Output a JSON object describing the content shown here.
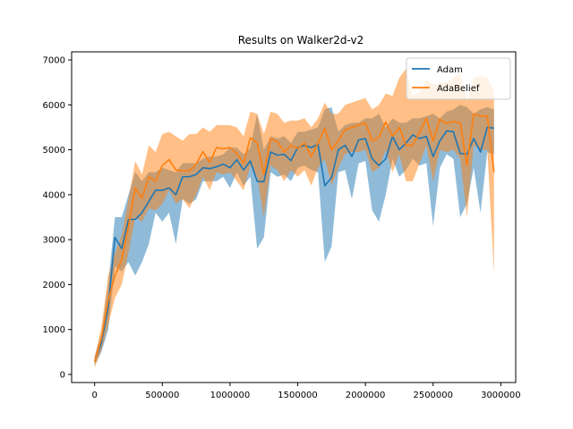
{
  "chart_data": {
    "type": "line",
    "title": "Results on Walker2d-v2",
    "xlabel": "",
    "ylabel": "",
    "xlim": [
      -170000,
      3110000
    ],
    "ylim": [
      -180,
      7180
    ],
    "xticks": [
      0,
      500000,
      1000000,
      1500000,
      2000000,
      2500000,
      3000000
    ],
    "xtick_labels": [
      "0",
      "500000",
      "1000000",
      "1500000",
      "2000000",
      "2500000",
      "3000000"
    ],
    "yticks": [
      0,
      1000,
      2000,
      3000,
      4000,
      5000,
      6000,
      7000
    ],
    "ytick_labels": [
      "0",
      "1000",
      "2000",
      "3000",
      "4000",
      "5000",
      "6000",
      "7000"
    ],
    "grid": false,
    "legend_position": "top-right",
    "x": [
      0,
      50000,
      100000,
      150000,
      200000,
      250000,
      300000,
      350000,
      400000,
      450000,
      500000,
      550000,
      600000,
      650000,
      700000,
      750000,
      800000,
      850000,
      900000,
      950000,
      1000000,
      1050000,
      1100000,
      1150000,
      1200000,
      1250000,
      1300000,
      1350000,
      1400000,
      1450000,
      1500000,
      1550000,
      1600000,
      1650000,
      1700000,
      1750000,
      1800000,
      1850000,
      1900000,
      1950000,
      2000000,
      2050000,
      2100000,
      2150000,
      2200000,
      2250000,
      2300000,
      2350000,
      2400000,
      2450000,
      2500000,
      2550000,
      2600000,
      2650000,
      2700000,
      2750000,
      2800000,
      2850000,
      2900000,
      2950000
    ],
    "series": [
      {
        "name": "Adam",
        "color": "#1f77b4",
        "values": [
          300,
          700,
          1500,
          3050,
          2800,
          3450,
          3450,
          3600,
          3850,
          4100,
          4100,
          4150,
          4000,
          4400,
          4400,
          4450,
          4600,
          4580,
          4620,
          4680,
          4600,
          4780,
          4550,
          4750,
          4300,
          4290,
          4950,
          4880,
          4900,
          4760,
          5050,
          5100,
          5050,
          5120,
          4200,
          4380,
          5000,
          5100,
          4850,
          5220,
          5250,
          4800,
          4650,
          4800,
          5300,
          5000,
          5150,
          5330,
          5250,
          5300,
          4850,
          5200,
          5420,
          5400,
          4920,
          4900,
          5250,
          4950,
          5500,
          5480
        ],
        "lower": [
          200,
          500,
          1000,
          2400,
          2300,
          2500,
          2200,
          2500,
          2900,
          3600,
          3400,
          3600,
          2900,
          3900,
          3800,
          3900,
          4300,
          4300,
          4300,
          4400,
          4150,
          4500,
          4200,
          4400,
          2800,
          3050,
          4500,
          4400,
          4450,
          4300,
          4600,
          4650,
          4550,
          4500,
          2500,
          2850,
          4500,
          4550,
          3900,
          4700,
          4750,
          3650,
          3400,
          4000,
          4800,
          4400,
          4550,
          4800,
          4650,
          4700,
          3300,
          4600,
          4900,
          4800,
          3500,
          3800,
          4600,
          3600,
          4950,
          4900
        ],
        "upper": [
          400,
          900,
          2000,
          3500,
          3500,
          4000,
          4500,
          4300,
          4500,
          4500,
          4600,
          4550,
          4500,
          4700,
          4700,
          4700,
          4800,
          4850,
          4850,
          4900,
          5050,
          5050,
          4900,
          5050,
          5800,
          5000,
          5300,
          5250,
          5300,
          5150,
          5400,
          5400,
          5450,
          5500,
          5900,
          5950,
          5400,
          5550,
          5600,
          5600,
          5700,
          5700,
          5800,
          5500,
          5700,
          5600,
          5600,
          5700,
          5700,
          5750,
          5800,
          5700,
          5850,
          5900,
          6000,
          5950,
          5800,
          5900,
          5950,
          5900
        ]
      },
      {
        "name": "AdaBelief",
        "color": "#ff7f0e",
        "values": [
          280,
          800,
          1650,
          2200,
          2550,
          3300,
          4150,
          3920,
          4400,
          4300,
          4650,
          4780,
          4550,
          4530,
          4530,
          4680,
          4960,
          4720,
          5050,
          5020,
          5050,
          4920,
          4700,
          5270,
          5150,
          4450,
          5250,
          5180,
          4950,
          5100,
          5030,
          5150,
          4850,
          5150,
          5480,
          5000,
          5200,
          5450,
          5500,
          5550,
          5600,
          5200,
          5280,
          5620,
          5300,
          5500,
          5100,
          5100,
          5400,
          5700,
          5200,
          5680,
          5580,
          5630,
          5600,
          4650,
          5800,
          5750,
          5750,
          4500
        ],
        "lower": [
          150,
          550,
          1100,
          1700,
          2000,
          2700,
          3500,
          3400,
          3700,
          3650,
          3800,
          4100,
          3800,
          3900,
          3700,
          4000,
          4400,
          4100,
          4500,
          4450,
          4500,
          4300,
          4100,
          4650,
          4400,
          3500,
          4650,
          4550,
          4300,
          4550,
          4400,
          4550,
          4200,
          4600,
          4800,
          4200,
          4600,
          4900,
          4950,
          4950,
          5000,
          4500,
          4600,
          5000,
          4500,
          4900,
          4300,
          4300,
          4700,
          5100,
          4300,
          5000,
          4950,
          5000,
          4800,
          3500,
          5100,
          5000,
          5000,
          2250
        ],
        "upper": [
          400,
          1050,
          2200,
          2700,
          3100,
          3900,
          4750,
          4450,
          5100,
          4950,
          5350,
          5400,
          5300,
          5200,
          5350,
          5350,
          5500,
          5400,
          5550,
          5550,
          5550,
          5500,
          5300,
          5850,
          5800,
          5350,
          5850,
          5800,
          5600,
          5650,
          5650,
          5700,
          5500,
          5700,
          6050,
          5800,
          5800,
          6000,
          6050,
          6100,
          6150,
          5900,
          6000,
          6250,
          6200,
          6600,
          6800,
          6200,
          6300,
          6550,
          6450,
          6500,
          6500,
          6600,
          6700,
          6100,
          6600,
          6650,
          6600,
          6300
        ]
      }
    ]
  }
}
